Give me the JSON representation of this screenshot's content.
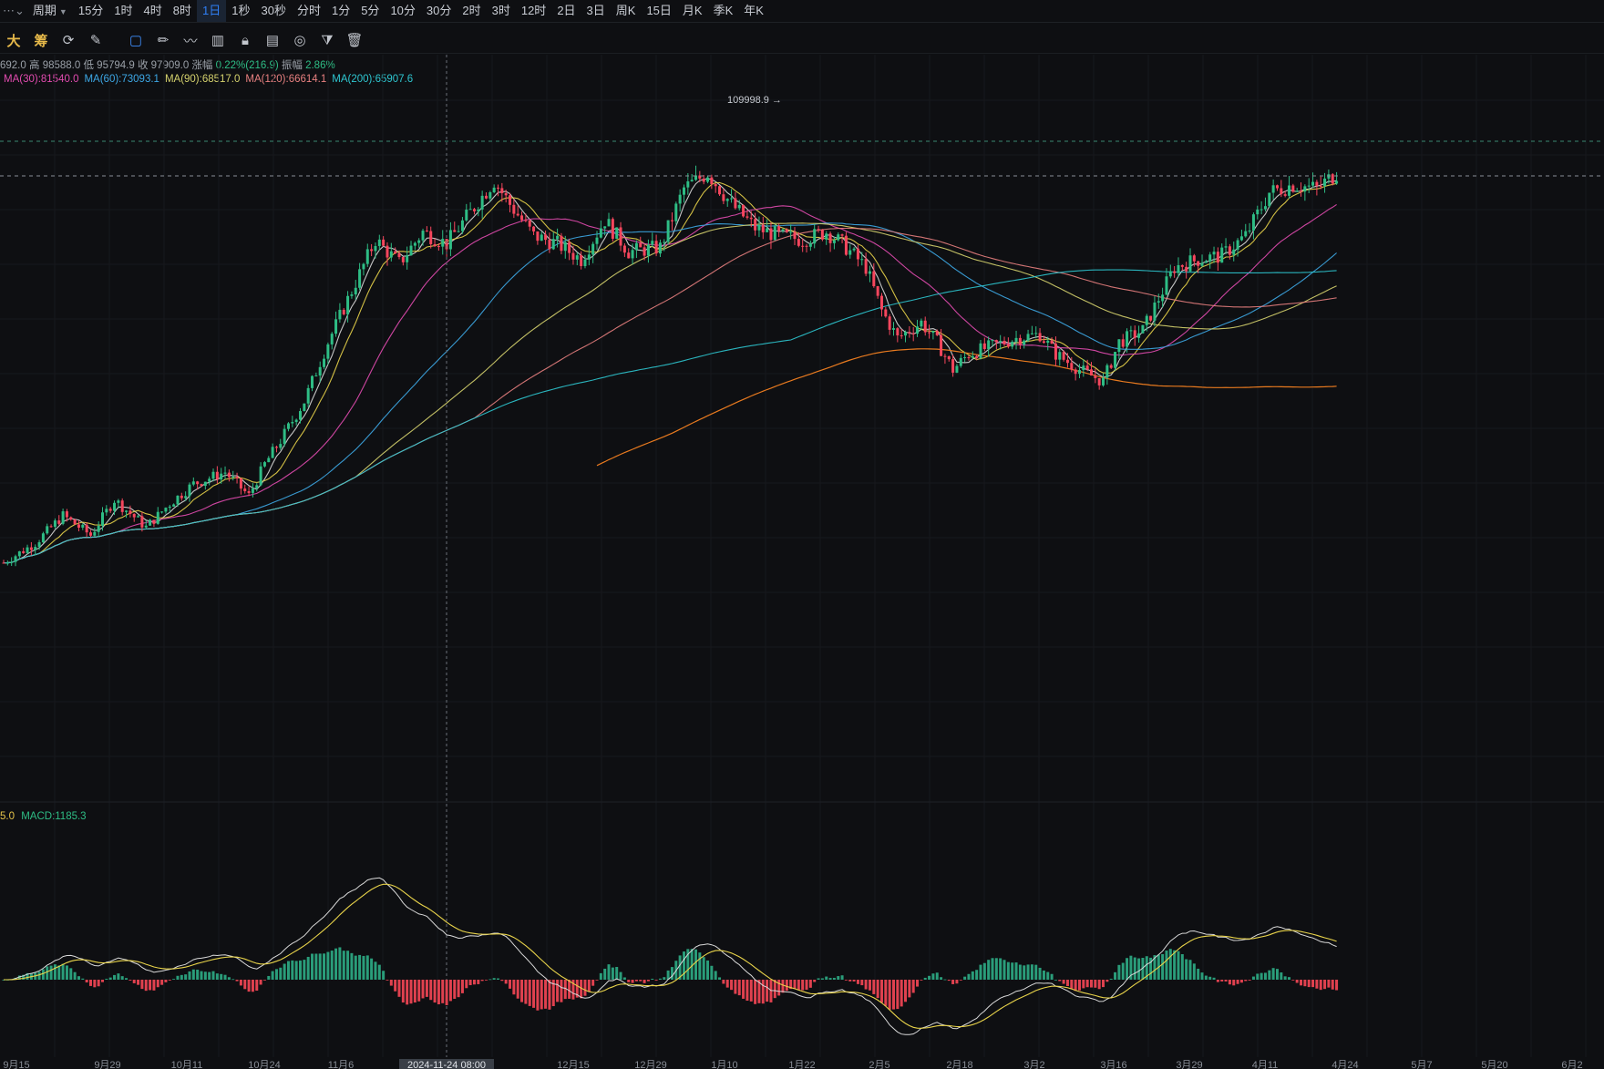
{
  "toolbar_periods": {
    "lead": "周期",
    "items": [
      "15分",
      "1时",
      "4时",
      "8时",
      "1日",
      "1秒",
      "30秒",
      "分时",
      "1分",
      "5分",
      "10分",
      "30分",
      "2时",
      "3时",
      "12时",
      "2日",
      "3日",
      "周K",
      "15日",
      "月K",
      "季K",
      "年K"
    ],
    "active": "1日"
  },
  "drawing_tools": {
    "labels": [
      "大",
      "筹"
    ],
    "icons": [
      "indicator-icon",
      "draw-icon",
      "rectangle-icon",
      "pencil-icon",
      "brush-icon",
      "candle-type-icon",
      "lock-icon",
      "template-icon",
      "magnet-icon",
      "filter-icon",
      "trash-icon"
    ]
  },
  "ohlc_info": {
    "open_partial": "692.0",
    "high_label": "高",
    "high": "98588.0",
    "low_label": "低",
    "low": "95794.9",
    "close_label": "收",
    "close": "97909.0",
    "change_label": "涨幅",
    "change": "0.22%(216.9)",
    "amplitude_label": "振幅",
    "amplitude": "2.86%"
  },
  "ma_legend": [
    {
      "label": "MA(30):81540.0",
      "color": "#e24bb0"
    },
    {
      "label": "MA(60):73093.1",
      "color": "#3da8e6"
    },
    {
      "label": "MA(90):68517.0",
      "color": "#d6d36e"
    },
    {
      "label": "MA(120):66614.1",
      "color": "#e88080"
    },
    {
      "label": "MA(200):65907.6",
      "color": "#2ec6d0"
    }
  ],
  "macd_info": {
    "partial": "5.0",
    "label": "MACD:1185.3"
  },
  "colors": {
    "up": "#2ebd85",
    "down": "#f6465d",
    "macd_up": "#2a9d7a",
    "macd_down": "#e0414f"
  },
  "chart_data": {
    "type": "candlestick",
    "annotations": {
      "high_marker": "109998.9"
    },
    "x_axis_labels": [
      "9月15",
      "9月29",
      "10月11",
      "10月24",
      "11月6",
      "2024-11-24 08:00",
      "12月15",
      "12月29",
      "1月10",
      "1月22",
      "2月5",
      "2月18",
      "3月2",
      "3月16",
      "3月29",
      "4月11",
      "4月24",
      "5月7",
      "5月20",
      "6月2"
    ],
    "ma_periods": [
      30,
      60,
      90,
      120,
      200
    ],
    "macd": {
      "value": 1185.3
    }
  }
}
